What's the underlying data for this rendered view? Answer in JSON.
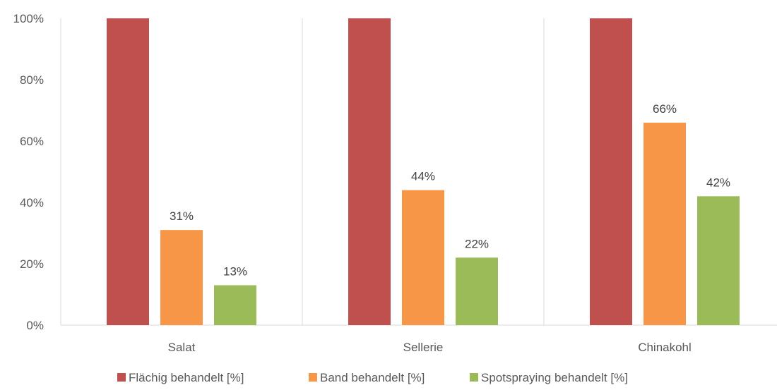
{
  "chart_data": {
    "type": "bar",
    "categories": [
      "Salat",
      "Sellerie",
      "Chinakohl"
    ],
    "series": [
      {
        "name": "Flächig behandelt [%]",
        "values": [
          100,
          100,
          100
        ],
        "color": "#C0504D",
        "show_labels": false
      },
      {
        "name": "Band behandelt [%]",
        "values": [
          31,
          44,
          66
        ],
        "color": "#F79646",
        "show_labels": true
      },
      {
        "name": "Spotspraying behandelt [%]",
        "values": [
          13,
          22,
          42
        ],
        "color": "#9BBB59",
        "show_labels": true
      }
    ],
    "data_labels": {
      "Band behandelt [%]": [
        "31%",
        "44%",
        "66%"
      ],
      "Spotspraying behandelt [%]": [
        "13%",
        "22%",
        "42%"
      ]
    },
    "yticks": [
      "0%",
      "20%",
      "40%",
      "60%",
      "80%",
      "100%"
    ],
    "ylim": [
      0,
      100
    ],
    "grid": "vertical category separators",
    "legend_position": "bottom",
    "gridline_color": "#D9D9D9"
  }
}
